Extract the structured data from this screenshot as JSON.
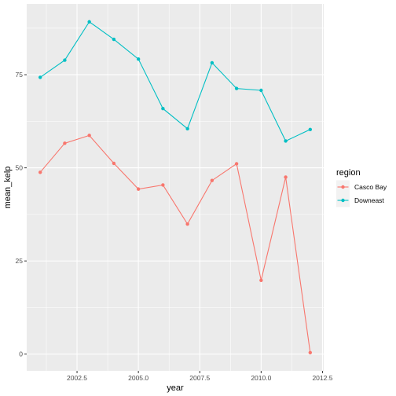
{
  "chart_data": {
    "type": "line",
    "xlabel": "year",
    "ylabel": "mean_kelp",
    "xlim": [
      2000.45,
      2012.55
    ],
    "ylim": [
      -4.5,
      94
    ],
    "x_ticks": [
      {
        "value": 2002.5,
        "label": "2002.5"
      },
      {
        "value": 2005.0,
        "label": "2005.0"
      },
      {
        "value": 2007.5,
        "label": "2007.5"
      },
      {
        "value": 2010.0,
        "label": "2010.0"
      },
      {
        "value": 2012.5,
        "label": "2012.5"
      }
    ],
    "y_ticks": [
      {
        "value": 0,
        "label": "0"
      },
      {
        "value": 25,
        "label": "25"
      },
      {
        "value": 50,
        "label": "50"
      },
      {
        "value": 75,
        "label": "75"
      }
    ],
    "grid": true,
    "legend": {
      "title": "region",
      "position": "right"
    },
    "series": [
      {
        "name": "Casco Bay",
        "color": "#F8766D",
        "x": [
          2001,
          2002,
          2003,
          2004,
          2005,
          2006,
          2007,
          2008,
          2009,
          2010,
          2011,
          2012
        ],
        "values": [
          48.8,
          56.6,
          58.7,
          51.2,
          44.3,
          45.4,
          34.9,
          46.6,
          51.1,
          19.8,
          47.5,
          0.4
        ]
      },
      {
        "name": "Downeast",
        "color": "#00BFC4",
        "x": [
          2001,
          2002,
          2003,
          2004,
          2005,
          2006,
          2007,
          2008,
          2009,
          2010,
          2011,
          2012
        ],
        "values": [
          74.3,
          78.9,
          89.2,
          84.5,
          79.2,
          65.9,
          60.5,
          78.2,
          71.3,
          70.8,
          57.2,
          60.3
        ]
      }
    ]
  }
}
